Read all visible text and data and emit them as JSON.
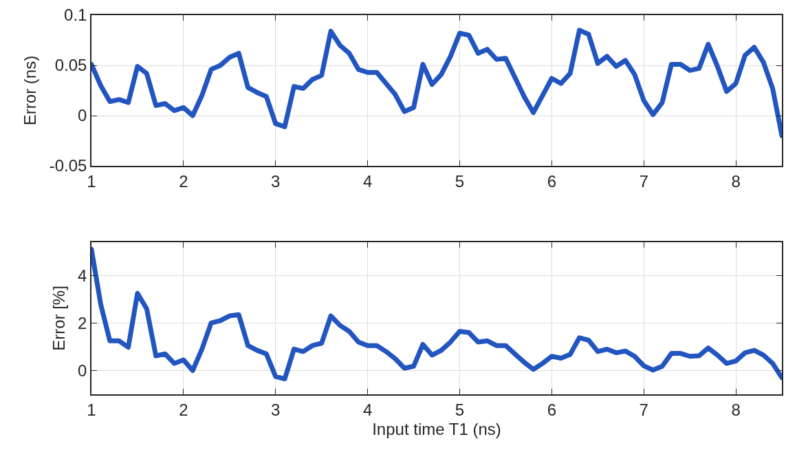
{
  "chart_data": [
    {
      "type": "line",
      "ylabel": "Error (ns)",
      "x": [
        1.0,
        1.1,
        1.2,
        1.3,
        1.4,
        1.5,
        1.6,
        1.7,
        1.8,
        1.9,
        2.0,
        2.1,
        2.2,
        2.3,
        2.4,
        2.5,
        2.6,
        2.7,
        2.8,
        2.9,
        3.0,
        3.1,
        3.2,
        3.3,
        3.4,
        3.5,
        3.6,
        3.7,
        3.8,
        3.9,
        4.0,
        4.1,
        4.2,
        4.3,
        4.4,
        4.5,
        4.6,
        4.7,
        4.8,
        4.9,
        5.0,
        5.1,
        5.2,
        5.3,
        5.4,
        5.5,
        5.6,
        5.7,
        5.8,
        5.9,
        6.0,
        6.1,
        6.2,
        6.3,
        6.4,
        6.5,
        6.6,
        6.7,
        6.8,
        6.9,
        7.0,
        7.1,
        7.2,
        7.3,
        7.4,
        7.5,
        7.6,
        7.7,
        7.8,
        7.9,
        8.0,
        8.1,
        8.2,
        8.3,
        8.4,
        8.5
      ],
      "series": [
        {
          "color": "#2255c0",
          "values": [
            0.051,
            0.03,
            0.014,
            0.016,
            0.013,
            0.049,
            0.042,
            0.01,
            0.012,
            0.005,
            0.008,
            0.0,
            0.02,
            0.046,
            0.05,
            0.058,
            0.062,
            0.028,
            0.023,
            0.019,
            -0.008,
            -0.011,
            0.029,
            0.027,
            0.036,
            0.04,
            0.084,
            0.07,
            0.062,
            0.046,
            0.043,
            0.043,
            0.032,
            0.021,
            0.004,
            0.008,
            0.051,
            0.031,
            0.041,
            0.059,
            0.082,
            0.08,
            0.062,
            0.066,
            0.056,
            0.057,
            0.038,
            0.019,
            0.003,
            0.02,
            0.037,
            0.032,
            0.042,
            0.085,
            0.081,
            0.052,
            0.059,
            0.049,
            0.055,
            0.041,
            0.015,
            0.001,
            0.013,
            0.051,
            0.051,
            0.045,
            0.047,
            0.071,
            0.049,
            0.024,
            0.032,
            0.06,
            0.068,
            0.053,
            0.027,
            -0.02
          ]
        }
      ],
      "xlim": [
        1,
        8.5
      ],
      "xticks": [
        1,
        2,
        3,
        4,
        5,
        6,
        7,
        8
      ],
      "ylim": [
        -0.05,
        0.1
      ],
      "yticks": [
        -0.05,
        0,
        0.05,
        0.1
      ],
      "grid": true,
      "marker": "none",
      "line_style": "solid"
    },
    {
      "type": "line",
      "xlabel": "Input time T1 (ns)",
      "ylabel": "Error [%]",
      "x": [
        1.0,
        1.1,
        1.2,
        1.3,
        1.4,
        1.5,
        1.6,
        1.7,
        1.8,
        1.9,
        2.0,
        2.1,
        2.2,
        2.3,
        2.4,
        2.5,
        2.6,
        2.7,
        2.8,
        2.9,
        3.0,
        3.1,
        3.2,
        3.3,
        3.4,
        3.5,
        3.6,
        3.7,
        3.8,
        3.9,
        4.0,
        4.1,
        4.2,
        4.3,
        4.4,
        4.5,
        4.6,
        4.7,
        4.8,
        4.9,
        5.0,
        5.1,
        5.2,
        5.3,
        5.4,
        5.5,
        5.6,
        5.7,
        5.8,
        5.9,
        6.0,
        6.1,
        6.2,
        6.3,
        6.4,
        6.5,
        6.6,
        6.7,
        6.8,
        6.9,
        7.0,
        7.1,
        7.2,
        7.3,
        7.4,
        7.5,
        7.6,
        7.7,
        7.8,
        7.9,
        8.0,
        8.1,
        8.2,
        8.3,
        8.4,
        8.5
      ],
      "series": [
        {
          "color": "#2255c0",
          "values": [
            5.1,
            2.8,
            1.25,
            1.25,
            0.98,
            3.25,
            2.6,
            0.62,
            0.7,
            0.3,
            0.45,
            0.0,
            0.9,
            2.0,
            2.1,
            2.3,
            2.35,
            1.05,
            0.85,
            0.7,
            -0.25,
            -0.35,
            0.9,
            0.8,
            1.05,
            1.15,
            2.3,
            1.9,
            1.65,
            1.2,
            1.05,
            1.05,
            0.8,
            0.5,
            0.1,
            0.18,
            1.1,
            0.65,
            0.85,
            1.2,
            1.65,
            1.6,
            1.2,
            1.25,
            1.05,
            1.05,
            0.7,
            0.35,
            0.05,
            0.3,
            0.6,
            0.52,
            0.68,
            1.38,
            1.28,
            0.8,
            0.9,
            0.75,
            0.82,
            0.6,
            0.2,
            0.02,
            0.18,
            0.72,
            0.72,
            0.6,
            0.62,
            0.95,
            0.65,
            0.3,
            0.4,
            0.75,
            0.85,
            0.65,
            0.3,
            -0.3
          ]
        }
      ],
      "xlim": [
        1,
        8.5
      ],
      "xticks": [
        1,
        2,
        3,
        4,
        5,
        6,
        7,
        8
      ],
      "ylim": [
        -1,
        5.4
      ],
      "yticks": [
        0,
        2,
        4
      ],
      "grid": true,
      "marker": "none",
      "line_style": "solid"
    }
  ]
}
